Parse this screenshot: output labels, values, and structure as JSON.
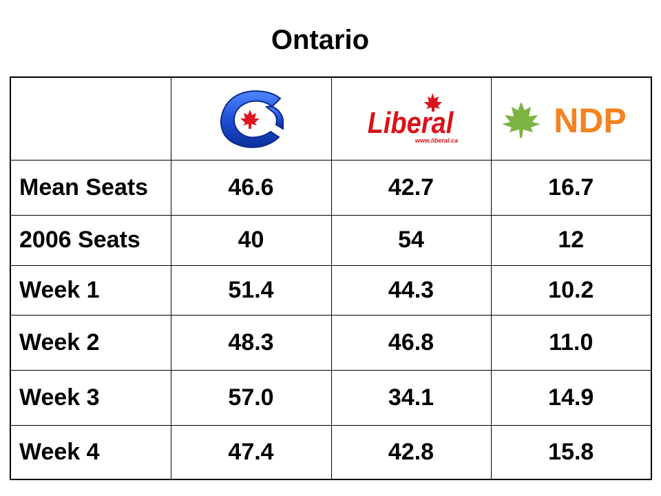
{
  "title": "Ontario",
  "parties": [
    {
      "icon": "conservative-party-logo-icon",
      "color": "#1f4fd8"
    },
    {
      "icon": "liberal-party-logo-icon",
      "wordmark": "Liberal",
      "url": "www.liberal.ca",
      "color": "#d7141a"
    },
    {
      "icon": "ndp-party-logo-icon",
      "wordmark": "NDP",
      "color": "#f58220",
      "leaf_color": "#7cb342"
    }
  ],
  "rows": [
    {
      "label": "Mean Seats",
      "values": [
        "46.6",
        "42.7",
        "16.7"
      ]
    },
    {
      "label": "2006 Seats",
      "values": [
        "40",
        "54",
        "12"
      ]
    },
    {
      "label": "Week 1",
      "values": [
        "51.4",
        "44.3",
        "10.2"
      ]
    },
    {
      "label": "Week 2",
      "values": [
        "48.3",
        "46.8",
        "11.0"
      ]
    },
    {
      "label": "Week 3",
      "values": [
        "57.0",
        "34.1",
        "14.9"
      ]
    },
    {
      "label": "Week 4",
      "values": [
        "47.4",
        "42.8",
        "15.8"
      ]
    }
  ]
}
